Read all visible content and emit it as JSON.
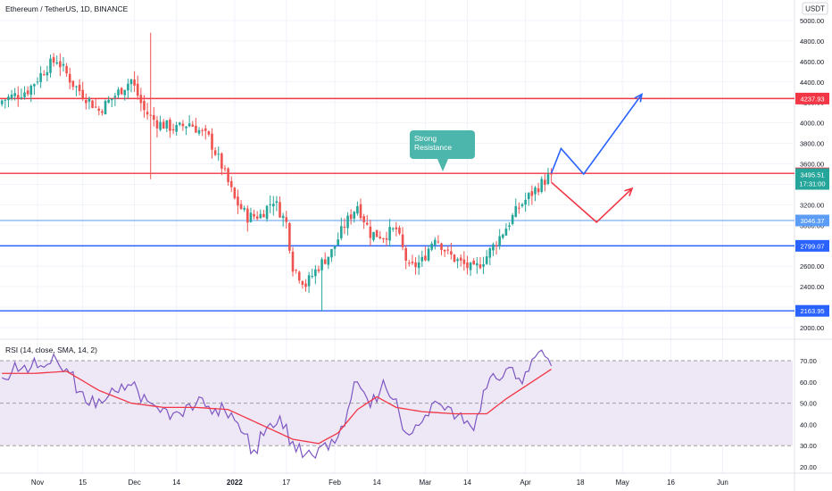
{
  "header": {
    "symbol_title": "Ethereum / TetherUS, 1D, BINANCE",
    "currency": "USDT"
  },
  "colors": {
    "up": "#26a69a",
    "down": "#ef5350",
    "resistance_line": "#f23645",
    "support_line": "#2962ff",
    "light_line": "#5b9cf6",
    "rsi_line": "#7e57c2",
    "rsi_ma": "#f23645",
    "rsi_band": "#ede7f6",
    "callout": "#4db6ac"
  },
  "chart_data": [
    {
      "type": "candlestick",
      "title": "Ethereum / TetherUS, 1D, BINANCE",
      "ylim": [
        1900,
        5100
      ],
      "y_ticks": [
        2000,
        2200,
        2400,
        2600,
        2800,
        3000,
        3200,
        3400,
        3600,
        3800,
        4000,
        4200,
        4400,
        4600,
        4800,
        5000
      ],
      "y_tick_labels": [
        "2000.00",
        "2200.00",
        "2400.00",
        "2600.00",
        "2800.00",
        "3000.00",
        "3200.00",
        "3400.00",
        "3600.00",
        "3800.00",
        "4000.00",
        "4200.00",
        "4400.00",
        "4600.00",
        "4800.00",
        "5000.00"
      ],
      "x_labels": [
        "Nov",
        "15",
        "Dec",
        "14",
        "2022",
        "17",
        "Feb",
        "14",
        "Mar",
        "14",
        "Apr",
        "18",
        "May",
        "16",
        "Jun"
      ],
      "x_dates": [
        "2021-11-01",
        "2021-11-15",
        "2021-12-01",
        "2021-12-14",
        "2022-01-01",
        "2022-01-17",
        "2022-02-01",
        "2022-02-14",
        "2022-03-01",
        "2022-03-14",
        "2022-04-01",
        "2022-04-18",
        "2022-05-01",
        "2022-05-16",
        "2022-06-01"
      ],
      "close_path": [
        [
          0,
          4220
        ],
        [
          8,
          4320
        ],
        [
          14,
          4550
        ],
        [
          17,
          4620
        ],
        [
          22,
          4380
        ],
        [
          30,
          4120
        ],
        [
          40,
          4420
        ],
        [
          44,
          4120
        ],
        [
          48,
          4000
        ],
        [
          54,
          3940
        ],
        [
          58,
          4000
        ],
        [
          64,
          3850
        ],
        [
          68,
          3580
        ],
        [
          72,
          3250
        ],
        [
          76,
          3080
        ],
        [
          80,
          3100
        ],
        [
          84,
          3250
        ],
        [
          88,
          3020
        ],
        [
          90,
          2600
        ],
        [
          94,
          2420
        ],
        [
          98,
          2600
        ],
        [
          102,
          2740
        ],
        [
          106,
          3000
        ],
        [
          110,
          3200
        ],
        [
          114,
          2920
        ],
        [
          118,
          2900
        ],
        [
          122,
          2960
        ],
        [
          126,
          2570
        ],
        [
          130,
          2650
        ],
        [
          134,
          2900
        ],
        [
          138,
          2720
        ],
        [
          142,
          2630
        ],
        [
          146,
          2560
        ],
        [
          150,
          2700
        ],
        [
          156,
          2980
        ],
        [
          160,
          3180
        ],
        [
          166,
          3380
        ],
        [
          170,
          3495.51
        ]
      ],
      "wick_extremes": {
        "high": 4880,
        "low": 2160
      },
      "last_price": 3495.51,
      "countdown": "17:31:00",
      "horizontal_levels": [
        {
          "value": 4237.93,
          "label": "4237.93",
          "style": "resistance"
        },
        {
          "value": 3507.26,
          "label": "3507.26",
          "style": "resistance"
        },
        {
          "value": 3046.37,
          "label": "3046.37",
          "style": "light"
        },
        {
          "value": 2799.07,
          "label": "2799.07",
          "style": "support"
        },
        {
          "value": 2163.95,
          "label": "2163.95",
          "style": "support"
        }
      ],
      "annotation": {
        "text_lines": [
          "Strong",
          "Resistance"
        ],
        "points_to_value": 3507.26
      },
      "projections": [
        {
          "name": "bullish",
          "color": "#2962ff",
          "points": [
            [
              170,
              3507
            ],
            [
              173,
              3750
            ],
            [
              180,
              3500
            ],
            [
              198,
              4280
            ]
          ]
        },
        {
          "name": "bearish",
          "color": "#f23645",
          "points": [
            [
              170,
              3420
            ],
            [
              184,
              3030
            ],
            [
              195,
              3360
            ]
          ]
        }
      ]
    },
    {
      "type": "line",
      "title": "RSI (14, close, SMA, 14, 2)",
      "ylim": [
        17,
        76
      ],
      "y_ticks": [
        20,
        30,
        40,
        50,
        60,
        70
      ],
      "y_tick_labels": [
        "20.00",
        "30.00",
        "40.00",
        "50.00",
        "60.00",
        "70.00"
      ],
      "band": [
        30,
        70
      ],
      "midline": 50,
      "series": [
        {
          "name": "RSI",
          "points": [
            [
              0,
              62
            ],
            [
              5,
              66
            ],
            [
              10,
              67
            ],
            [
              16,
              69
            ],
            [
              22,
              63
            ],
            [
              26,
              48
            ],
            [
              30,
              52
            ],
            [
              36,
              55
            ],
            [
              40,
              60
            ],
            [
              44,
              52
            ],
            [
              48,
              48
            ],
            [
              54,
              46
            ],
            [
              58,
              50
            ],
            [
              64,
              48
            ],
            [
              70,
              46
            ],
            [
              74,
              38
            ],
            [
              78,
              28
            ],
            [
              82,
              37
            ],
            [
              86,
              40
            ],
            [
              90,
              32
            ],
            [
              94,
              22
            ],
            [
              98,
              29
            ],
            [
              104,
              35
            ],
            [
              110,
              60
            ],
            [
              114,
              48
            ],
            [
              118,
              58
            ],
            [
              122,
              48
            ],
            [
              126,
              35
            ],
            [
              132,
              44
            ],
            [
              136,
              52
            ],
            [
              140,
              45
            ],
            [
              146,
              40
            ],
            [
              150,
              57
            ],
            [
              156,
              66
            ],
            [
              160,
              60
            ],
            [
              166,
              74
            ],
            [
              170,
              70
            ]
          ]
        },
        {
          "name": "SMA",
          "points": [
            [
              0,
              64
            ],
            [
              10,
              64
            ],
            [
              20,
              65
            ],
            [
              30,
              56
            ],
            [
              40,
              50
            ],
            [
              50,
              48
            ],
            [
              60,
              48
            ],
            [
              70,
              47
            ],
            [
              80,
              40
            ],
            [
              90,
              33
            ],
            [
              98,
              31
            ],
            [
              104,
              36
            ],
            [
              110,
              47
            ],
            [
              116,
              53
            ],
            [
              122,
              48
            ],
            [
              130,
              46
            ],
            [
              140,
              45
            ],
            [
              150,
              45
            ],
            [
              156,
              52
            ],
            [
              162,
              58
            ],
            [
              170,
              66
            ]
          ]
        }
      ]
    }
  ]
}
